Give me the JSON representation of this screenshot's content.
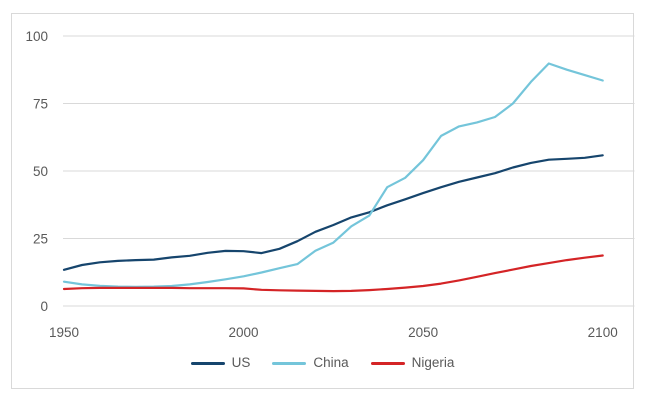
{
  "chart_data": {
    "type": "line",
    "title": "",
    "xlabel": "",
    "ylabel": "",
    "x": [
      1950,
      1955,
      1960,
      1965,
      1970,
      1975,
      1980,
      1985,
      1990,
      1995,
      2000,
      2005,
      2010,
      2015,
      2020,
      2025,
      2030,
      2035,
      2040,
      2045,
      2050,
      2055,
      2060,
      2065,
      2070,
      2075,
      2080,
      2085,
      2090,
      2095,
      2100
    ],
    "series": [
      {
        "name": "US",
        "color": "#16456d",
        "values": [
          13.4,
          15.2,
          16.2,
          16.7,
          17.0,
          17.2,
          18.0,
          18.6,
          19.7,
          20.4,
          20.3,
          19.6,
          21.2,
          24.0,
          27.5,
          30.0,
          32.8,
          34.7,
          37.3,
          39.5,
          41.8,
          44.0,
          46.0,
          47.6,
          49.2,
          51.3,
          53.0,
          54.2,
          54.5,
          54.9,
          55.8
        ]
      },
      {
        "name": "China",
        "color": "#74c5da",
        "values": [
          9.0,
          8.0,
          7.5,
          7.2,
          7.1,
          7.2,
          7.4,
          8.0,
          8.9,
          9.9,
          11.0,
          12.4,
          14.0,
          15.5,
          20.5,
          23.5,
          29.5,
          33.5,
          44.0,
          47.5,
          54.0,
          63.0,
          66.5,
          68.0,
          70.0,
          75.0,
          83.0,
          89.8,
          87.5,
          85.5,
          83.5
        ]
      },
      {
        "name": "Nigeria",
        "color": "#d42426",
        "values": [
          6.3,
          6.6,
          6.7,
          6.7,
          6.7,
          6.7,
          6.7,
          6.6,
          6.6,
          6.6,
          6.5,
          6.0,
          5.8,
          5.7,
          5.6,
          5.5,
          5.6,
          5.9,
          6.3,
          6.8,
          7.4,
          8.3,
          9.5,
          10.8,
          12.2,
          13.5,
          14.8,
          15.9,
          17.0,
          17.9,
          18.7
        ]
      }
    ],
    "xlim": [
      1950,
      2109
    ],
    "ylim": [
      0,
      100
    ],
    "xticks": [
      1950,
      2000,
      2050,
      2100
    ],
    "yticks": [
      0,
      25,
      50,
      75,
      100
    ],
    "grid": "horizontal",
    "legend_position": "bottom-center"
  },
  "style": {
    "grid_color": "#d9d9d9",
    "tick_label_color": "#595959",
    "frame_border_color": "#d9d9d9",
    "background": "#ffffff"
  }
}
